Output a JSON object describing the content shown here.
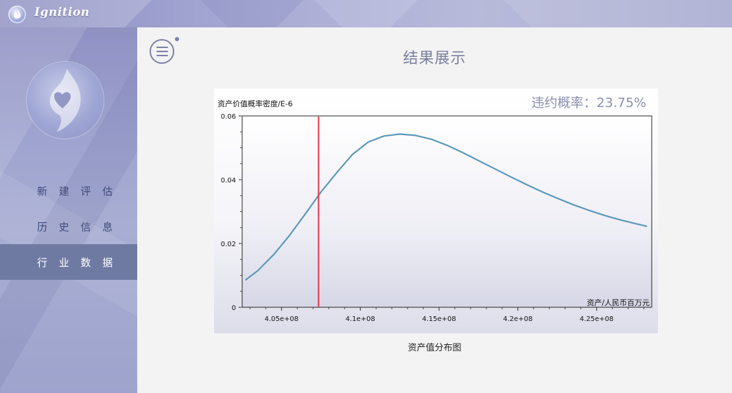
{
  "app": {
    "name": "Ignition"
  },
  "sidebar": {
    "items": [
      {
        "label": "新 建 评 估"
      },
      {
        "label": "历 史 信 息"
      },
      {
        "label": "行 业 数 据"
      }
    ]
  },
  "main": {
    "title": "结果展示",
    "default_probability_text": "违约概率：23.75%",
    "chart_caption": "资产值分布图"
  },
  "colors": {
    "accent": "#6f7aa3",
    "curve": "#5b98b8",
    "threshold_line": "#e0344a"
  },
  "icons": {
    "menu": "menu-icon",
    "logo": "flame-logo-icon",
    "avatar": "flame-heart-icon"
  },
  "chart_data": {
    "type": "line",
    "ylabel": "资产价值概率密度/E-6",
    "xlabel": "资产/人民币百万元",
    "xlim": [
      402500000,
      428500000
    ],
    "ylim": [
      0,
      0.06
    ],
    "x_ticks": [
      405000000,
      410000000,
      415000000,
      420000000,
      425000000
    ],
    "x_tick_labels": [
      "4.05e+08",
      "4.1e+08",
      "4.15e+08",
      "4.2e+08",
      "4.25e+08"
    ],
    "y_ticks": [
      0,
      0.02,
      0.04,
      0.06
    ],
    "y_tick_labels": [
      "0",
      "0.02",
      "0.04",
      "0.06"
    ],
    "threshold_x": 407350000,
    "series": [
      {
        "x": [
          402700000,
          403500000,
          404500000,
          405500000,
          406500000,
          407500000,
          408500000,
          409500000,
          410500000,
          411500000,
          412500000,
          413500000,
          414500000,
          415500000,
          416500000,
          417500000,
          418500000,
          419500000,
          420500000,
          421500000,
          422500000,
          423500000,
          424500000,
          425500000,
          426500000,
          427500000,
          428200000
        ],
        "values": [
          0.0085,
          0.0115,
          0.0165,
          0.0225,
          0.0292,
          0.0361,
          0.0422,
          0.0479,
          0.0518,
          0.0537,
          0.0543,
          0.0539,
          0.0527,
          0.0508,
          0.0485,
          0.046,
          0.0435,
          0.041,
          0.0386,
          0.0363,
          0.0342,
          0.0322,
          0.0304,
          0.0288,
          0.0274,
          0.0262,
          0.0254
        ]
      }
    ]
  }
}
